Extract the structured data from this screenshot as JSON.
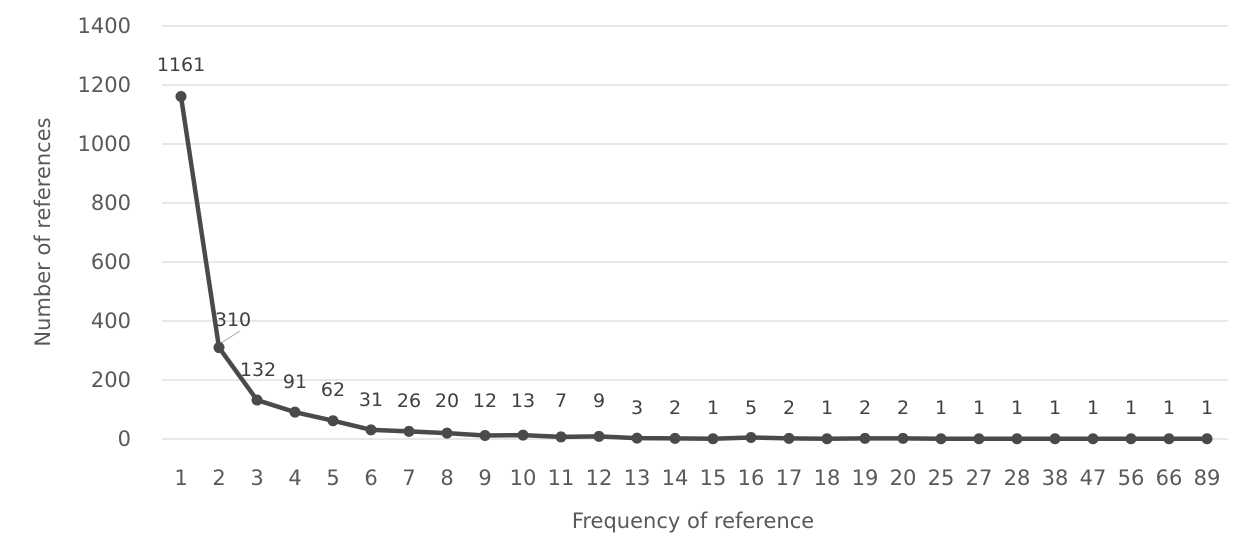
{
  "chart_data": {
    "type": "line",
    "title": "",
    "xlabel": "Frequency of reference",
    "ylabel": "Number of references",
    "ylim": [
      0,
      1400
    ],
    "yticks": [
      "0",
      "200",
      "400",
      "600",
      "800",
      "1000",
      "1200",
      "1400"
    ],
    "grid": true,
    "legend": "none",
    "categories": [
      "1",
      "2",
      "3",
      "4",
      "5",
      "6",
      "7",
      "8",
      "9",
      "10",
      "11",
      "12",
      "13",
      "14",
      "15",
      "16",
      "17",
      "18",
      "19",
      "20",
      "25",
      "27",
      "28",
      "38",
      "47",
      "56",
      "66",
      "89"
    ],
    "series": [
      {
        "values": [
          1161,
          310,
          132,
          91,
          62,
          31,
          26,
          20,
          12,
          13,
          7,
          9,
          3,
          2,
          1,
          5,
          2,
          1,
          2,
          2,
          1,
          1,
          1,
          1,
          1,
          1,
          1,
          1
        ],
        "data_labels": [
          "1161",
          "310",
          "132",
          "91",
          "62",
          "31",
          "26",
          "20",
          "12",
          "13",
          "7",
          "9",
          "3",
          "2",
          "1",
          "5",
          "2",
          "1",
          "2",
          "2",
          "1",
          "1",
          "1",
          "1",
          "1",
          "1",
          "1",
          "1"
        ],
        "color": "#4a4a4a"
      }
    ]
  }
}
